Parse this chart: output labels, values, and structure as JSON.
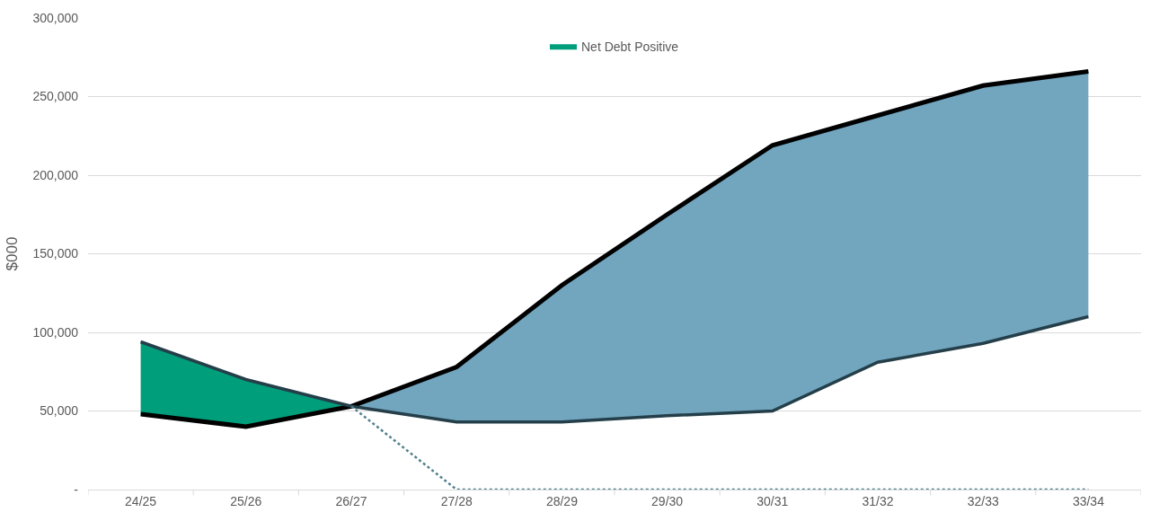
{
  "chart_data": {
    "type": "line",
    "ylabel": "$000",
    "categories": [
      "24/25",
      "25/26",
      "26/27",
      "27/28",
      "28/29",
      "29/30",
      "30/31",
      "31/32",
      "32/33",
      "33/34"
    ],
    "series": [
      {
        "color": "#000000",
        "values": [
          48000,
          40000,
          53000,
          78000,
          130000,
          175000,
          219000,
          238000,
          257000,
          266000
        ]
      },
      {
        "type": "area",
        "name": "Net Debt Positive",
        "color": "#009e7b",
        "values": [
          94000,
          70000,
          53000,
          null,
          null,
          null,
          null,
          null,
          null,
          null
        ]
      },
      {
        "color": "#243f4a",
        "values": [
          94000,
          70000,
          53000,
          43000,
          43000,
          47000,
          50000,
          81000,
          93000,
          110000
        ]
      },
      {
        "type": "area",
        "color": "#72a6bf",
        "values": [
          null,
          null,
          53000,
          78000,
          130000,
          175000,
          219000,
          238000,
          257000,
          266000
        ]
      },
      {
        "color": "#4f7f8c",
        "line_style": "dotted",
        "values": [
          null,
          null,
          53000,
          0,
          0,
          0,
          0,
          0,
          0,
          0
        ]
      }
    ],
    "ylim": [
      0,
      300000
    ],
    "yticks": [
      {
        "value": 0,
        "label": "-"
      },
      {
        "value": 50000,
        "label": "50,000"
      },
      {
        "value": 100000,
        "label": "100,000"
      },
      {
        "value": 150000,
        "label": "150,000"
      },
      {
        "value": 200000,
        "label": "200,000"
      },
      {
        "value": 250000,
        "label": "250,000"
      },
      {
        "value": 300000,
        "label": "300,000"
      }
    ],
    "grid": "y",
    "legend": "top",
    "marker": "none"
  }
}
